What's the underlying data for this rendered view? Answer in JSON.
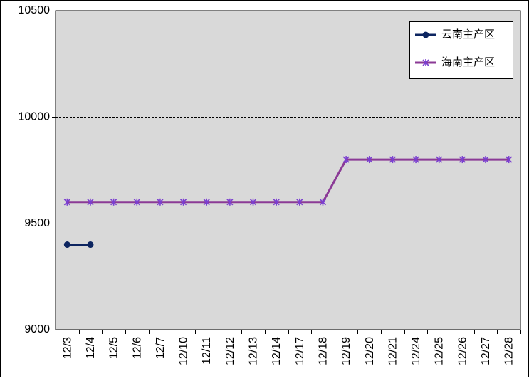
{
  "chart_data": {
    "type": "line",
    "categories": [
      "12/3",
      "12/4",
      "12/5",
      "12/6",
      "12/7",
      "12/10",
      "12/11",
      "12/12",
      "12/13",
      "12/14",
      "12/17",
      "12/18",
      "12/19",
      "12/20",
      "12/21",
      "12/24",
      "12/25",
      "12/26",
      "12/27",
      "12/28"
    ],
    "series": [
      {
        "name": "云南主产区",
        "color": "#0d2560",
        "marker": "circle",
        "values": [
          9400,
          9400,
          null,
          null,
          null,
          null,
          null,
          null,
          null,
          null,
          null,
          null,
          null,
          null,
          null,
          null,
          null,
          null,
          null,
          null
        ]
      },
      {
        "name": "海南主产区",
        "color": "#8b3a96",
        "marker": "star",
        "values": [
          9600,
          9600,
          9600,
          9600,
          9600,
          9600,
          9600,
          9600,
          9600,
          9600,
          9600,
          9600,
          9800,
          9800,
          9800,
          9800,
          9800,
          9800,
          9800,
          9800
        ]
      }
    ],
    "ylim": [
      9000,
      10500
    ],
    "yticks": [
      "9000",
      "9500",
      "10000",
      "10500"
    ],
    "ytick_values": [
      9000,
      9500,
      10000,
      10500
    ],
    "grid": "horizontal dashed",
    "plot_background": "#d9d9d9",
    "legend_position": "top-right"
  }
}
